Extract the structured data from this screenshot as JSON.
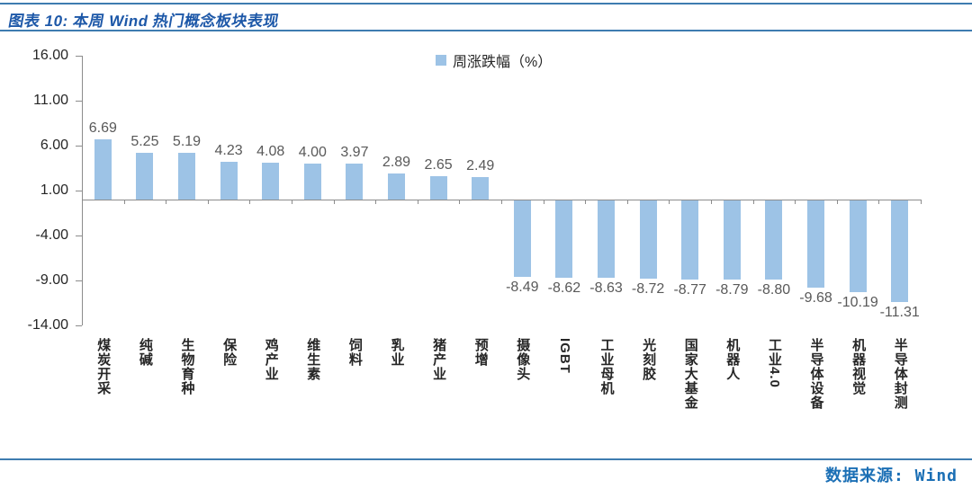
{
  "figure": {
    "title": "图表 10: 本周 Wind 热门概念板块表现",
    "source": "数据来源: Wind"
  },
  "colors": {
    "bar_fill": "#9DC3E6",
    "title_text": "#1D58A8",
    "rule_line": "#3E7CB0",
    "source_text": "#1B6FB5",
    "axis_gray": "#8c8c8c",
    "value_label": "#595959"
  },
  "chart_data": {
    "type": "bar",
    "title": "",
    "legend": [
      {
        "label": "周涨跌幅（%）",
        "color": "#9DC3E6"
      }
    ],
    "legend_position": "top-center",
    "grid": false,
    "categories": [
      "煤炭开采",
      "纯碱",
      "生物育种",
      "保险",
      "鸡产业",
      "维生素",
      "饲料",
      "乳业",
      "猪产业",
      "预增",
      "摄像头",
      "IGBT",
      "工业母机",
      "光刻胶",
      "国家大基金",
      "机器人",
      "工业4.0",
      "半导体设备",
      "机器视觉",
      "半导体封测"
    ],
    "series": [
      {
        "name": "周涨跌幅（%）",
        "values": [
          6.69,
          5.25,
          5.19,
          4.23,
          4.08,
          4.0,
          3.97,
          2.89,
          2.65,
          2.49,
          -8.49,
          -8.62,
          -8.63,
          -8.72,
          -8.77,
          -8.79,
          -8.8,
          -9.68,
          -10.19,
          -11.31
        ],
        "value_labels": [
          "6.69",
          "5.25",
          "5.19",
          "4.23",
          "4.08",
          "4.00",
          "3.97",
          "2.89",
          "2.65",
          "2.49",
          "-8.49",
          "-8.62",
          "-8.63",
          "-8.72",
          "-8.77",
          "-8.79",
          "-8.80",
          "-9.68",
          "-10.19",
          "-11.31"
        ]
      }
    ],
    "ylim": [
      -14,
      16
    ],
    "yticks": [
      16,
      11,
      6,
      1,
      -4,
      -9,
      -14
    ],
    "ytick_labels": [
      "16.00",
      "11.00",
      "6.00",
      "1.00",
      "-4.00",
      "-9.00",
      "-14.00"
    ],
    "xlabel": "",
    "ylabel": ""
  }
}
